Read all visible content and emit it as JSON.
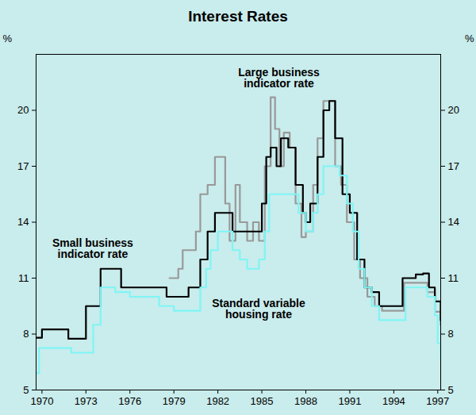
{
  "chart_data": {
    "type": "line",
    "title": "Interest Rates",
    "y_label": "%",
    "xlim": [
      1969.6,
      1997.2
    ],
    "xticks": [
      1970,
      1973,
      1976,
      1979,
      1982,
      1985,
      1988,
      1991,
      1994,
      1997
    ],
    "ylim": [
      5,
      23
    ],
    "yticks": [
      5,
      8,
      11,
      14,
      17,
      20
    ],
    "grid": false,
    "line_style": "step",
    "series": [
      {
        "name": "Large business indicator rate",
        "color": "#999999",
        "x": [
          1978.7,
          1979.3,
          1979.6,
          1980.5,
          1980.8,
          1981.3,
          1981.8,
          1982.2,
          1982.5,
          1982.8,
          1983.2,
          1983.5,
          1984.0,
          1984.4,
          1984.8,
          1985.2,
          1985.6,
          1985.9,
          1986.2,
          1986.5,
          1986.9,
          1987.3,
          1987.7,
          1988.0,
          1988.5,
          1988.8,
          1989.2,
          1989.6,
          1990.0,
          1990.4,
          1990.8,
          1991.3,
          1991.7,
          1992.2,
          1992.7,
          1993.2,
          1994.3,
          1994.7,
          1995.8,
          1996.3,
          1996.8,
          1997.2
        ],
        "values": [
          11,
          11.5,
          12.5,
          13.5,
          15.5,
          16,
          17.5,
          17.5,
          15,
          13,
          16,
          14,
          13,
          14,
          13,
          17,
          20.7,
          19,
          17,
          18.8,
          18,
          15,
          13.2,
          13.5,
          16,
          18.5,
          20.5,
          20.5,
          17,
          16,
          14,
          12,
          11,
          10,
          9.5,
          9.25,
          9.25,
          10.75,
          10.75,
          10.25,
          9.2,
          8.5
        ]
      },
      {
        "name": "Small business indicator rate",
        "color": "#000000",
        "x": [
          1969.6,
          1970.0,
          1971.8,
          1973.0,
          1974.0,
          1975.4,
          1978.5,
          1980.0,
          1980.8,
          1981.3,
          1981.8,
          1982.5,
          1983.0,
          1984.5,
          1985.0,
          1985.3,
          1985.6,
          1986.0,
          1986.3,
          1986.8,
          1987.3,
          1987.8,
          1988.0,
          1988.3,
          1988.8,
          1989.2,
          1989.6,
          1990.0,
          1990.5,
          1991.0,
          1991.5,
          1992.0,
          1992.5,
          1993.0,
          1994.2,
          1994.6,
          1995.5,
          1996.0,
          1996.4,
          1996.8,
          1997.0,
          1997.2
        ],
        "values": [
          7.8,
          8.25,
          7.75,
          9.5,
          11.5,
          10.5,
          10,
          10.5,
          12,
          13.5,
          14.5,
          14.5,
          13.5,
          13.5,
          15,
          17.5,
          18,
          17,
          18.5,
          18,
          16,
          14.5,
          14,
          15,
          17.5,
          20,
          20.5,
          18.5,
          15.5,
          14.5,
          12,
          10.5,
          10.25,
          9.5,
          9.5,
          11,
          11.2,
          11.25,
          10.5,
          9.75,
          9.75,
          8.75
        ]
      },
      {
        "name": "Standard variable housing rate",
        "color": "#7ff5f5",
        "x": [
          1969.6,
          1969.8,
          1972.0,
          1973.5,
          1974.0,
          1975.0,
          1976.0,
          1978.0,
          1979.0,
          1980.8,
          1981.2,
          1981.5,
          1982.0,
          1983.0,
          1983.5,
          1984.0,
          1984.8,
          1985.2,
          1985.5,
          1987.0,
          1987.5,
          1988.0,
          1988.5,
          1988.8,
          1989.2,
          1989.8,
          1990.3,
          1990.8,
          1991.2,
          1991.6,
          1992.0,
          1992.5,
          1993.0,
          1994.5,
          1994.8,
          1996.0,
          1996.3,
          1996.8,
          1997.0,
          1997.2
        ],
        "values": [
          5.9,
          7.25,
          7,
          8.5,
          10.5,
          10.25,
          10,
          9.5,
          9.25,
          10.5,
          11.5,
          12.5,
          13.5,
          12.5,
          12,
          11.5,
          12,
          13.5,
          15.5,
          15.5,
          14.5,
          13.5,
          14.5,
          15.5,
          17,
          17,
          16.5,
          15,
          13.5,
          11.5,
          10.5,
          9.5,
          8.75,
          8.75,
          10.5,
          10.5,
          10,
          9,
          7.5,
          6.7
        ]
      }
    ]
  }
}
